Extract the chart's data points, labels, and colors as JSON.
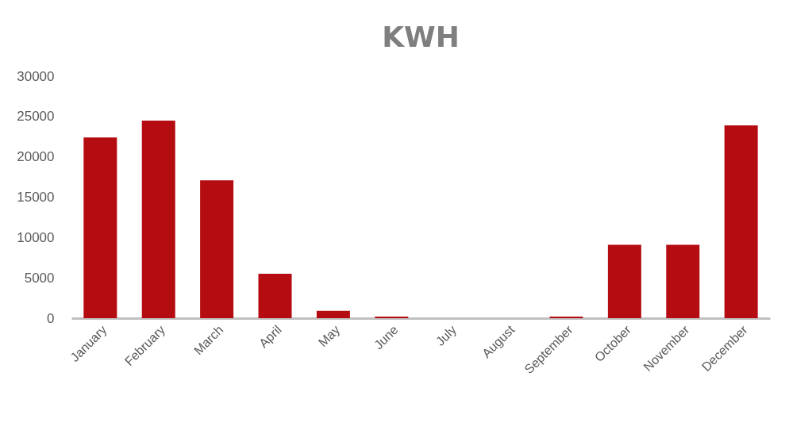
{
  "chart_data": {
    "type": "bar",
    "title": "KWH",
    "categories": [
      "January",
      "February",
      "March",
      "April",
      "May",
      "June",
      "July",
      "August",
      "September",
      "October",
      "November",
      "December"
    ],
    "values": [
      22400,
      24500,
      17100,
      5500,
      900,
      200,
      0,
      0,
      200,
      9100,
      9100,
      23900
    ],
    "color": "#b50c12",
    "ylim": [
      0,
      30000
    ],
    "yticks": [
      0,
      5000,
      10000,
      15000,
      20000,
      25000,
      30000
    ],
    "grid": false
  }
}
